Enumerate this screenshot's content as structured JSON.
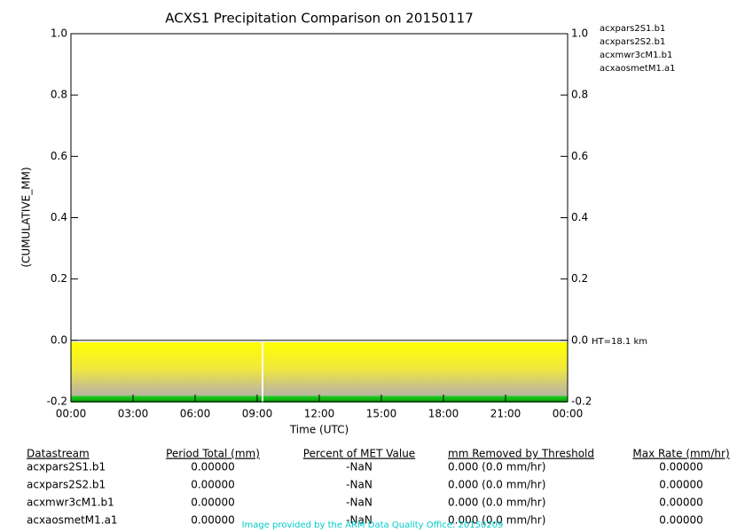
{
  "chart_data": {
    "type": "line",
    "title": "ACXS1 Precipitation Comparison on 20150117",
    "x_label": "Time (UTC)",
    "y_label": "(CUMULATIVE_MM)",
    "annotation": "HT=18.1 km",
    "xlim": [
      0,
      24
    ],
    "xticks": [
      {
        "value": 0,
        "label": "00:00"
      },
      {
        "value": 3,
        "label": "03:00"
      },
      {
        "value": 6,
        "label": "06:00"
      },
      {
        "value": 9,
        "label": "09:00"
      },
      {
        "value": 12,
        "label": "12:00"
      },
      {
        "value": 15,
        "label": "15:00"
      },
      {
        "value": 18,
        "label": "18:00"
      },
      {
        "value": 21,
        "label": "21:00"
      },
      {
        "value": 24,
        "label": "00:00"
      }
    ],
    "ylim": [
      -0.2,
      1
    ],
    "yticks": [
      {
        "value": 1,
        "label": "1.0"
      },
      0.8,
      0.6,
      0.4,
      0.2,
      {
        "value": 0,
        "label": "0.0"
      },
      {
        "value": -0.2,
        "label": "-0.2"
      }
    ],
    "y2lim": [
      -0.2,
      1
    ],
    "y2ticks": [
      {
        "value": 1,
        "label": "1.0"
      },
      0.8,
      0.6,
      0.4,
      0.2,
      {
        "value": 0,
        "label": "0.0"
      },
      {
        "value": -0.2,
        "label": "-0.2"
      }
    ],
    "series": [
      {
        "name": "acxpars2S1.b1",
        "color": "#0000cc"
      },
      {
        "name": "acxpars2S2.b1",
        "color": "#008800"
      },
      {
        "name": "acxmwr3cM1.b1",
        "color": "#dd0000"
      },
      {
        "name": "acxaosmetM1.a1",
        "color": "#000000"
      }
    ]
  },
  "table": {
    "header": [
      "Datastream",
      "Period Total (mm)",
      "Percent of MET Value",
      "mm Removed by Threshold",
      "Max Rate (mm/hr)"
    ],
    "rows": [
      [
        "acxpars2S1.b1",
        "0.00000",
        "-NaN",
        "0.000 (0.0 mm/hr)",
        "0.00000"
      ],
      [
        "acxpars2S2.b1",
        "0.00000",
        "-NaN",
        "0.000 (0.0 mm/hr)",
        "0.00000"
      ],
      [
        "acxmwr3cM1.b1",
        "0.00000",
        "-NaN",
        "0.000 (0.0 mm/hr)",
        "0.00000"
      ],
      [
        "acxaosmetM1.a1",
        "0.00000",
        "-NaN",
        "0.000 (0.0 mm/hr)",
        "0.00000"
      ]
    ]
  },
  "footer": "Image provided by the ARM Data Quality Office: 20150209"
}
